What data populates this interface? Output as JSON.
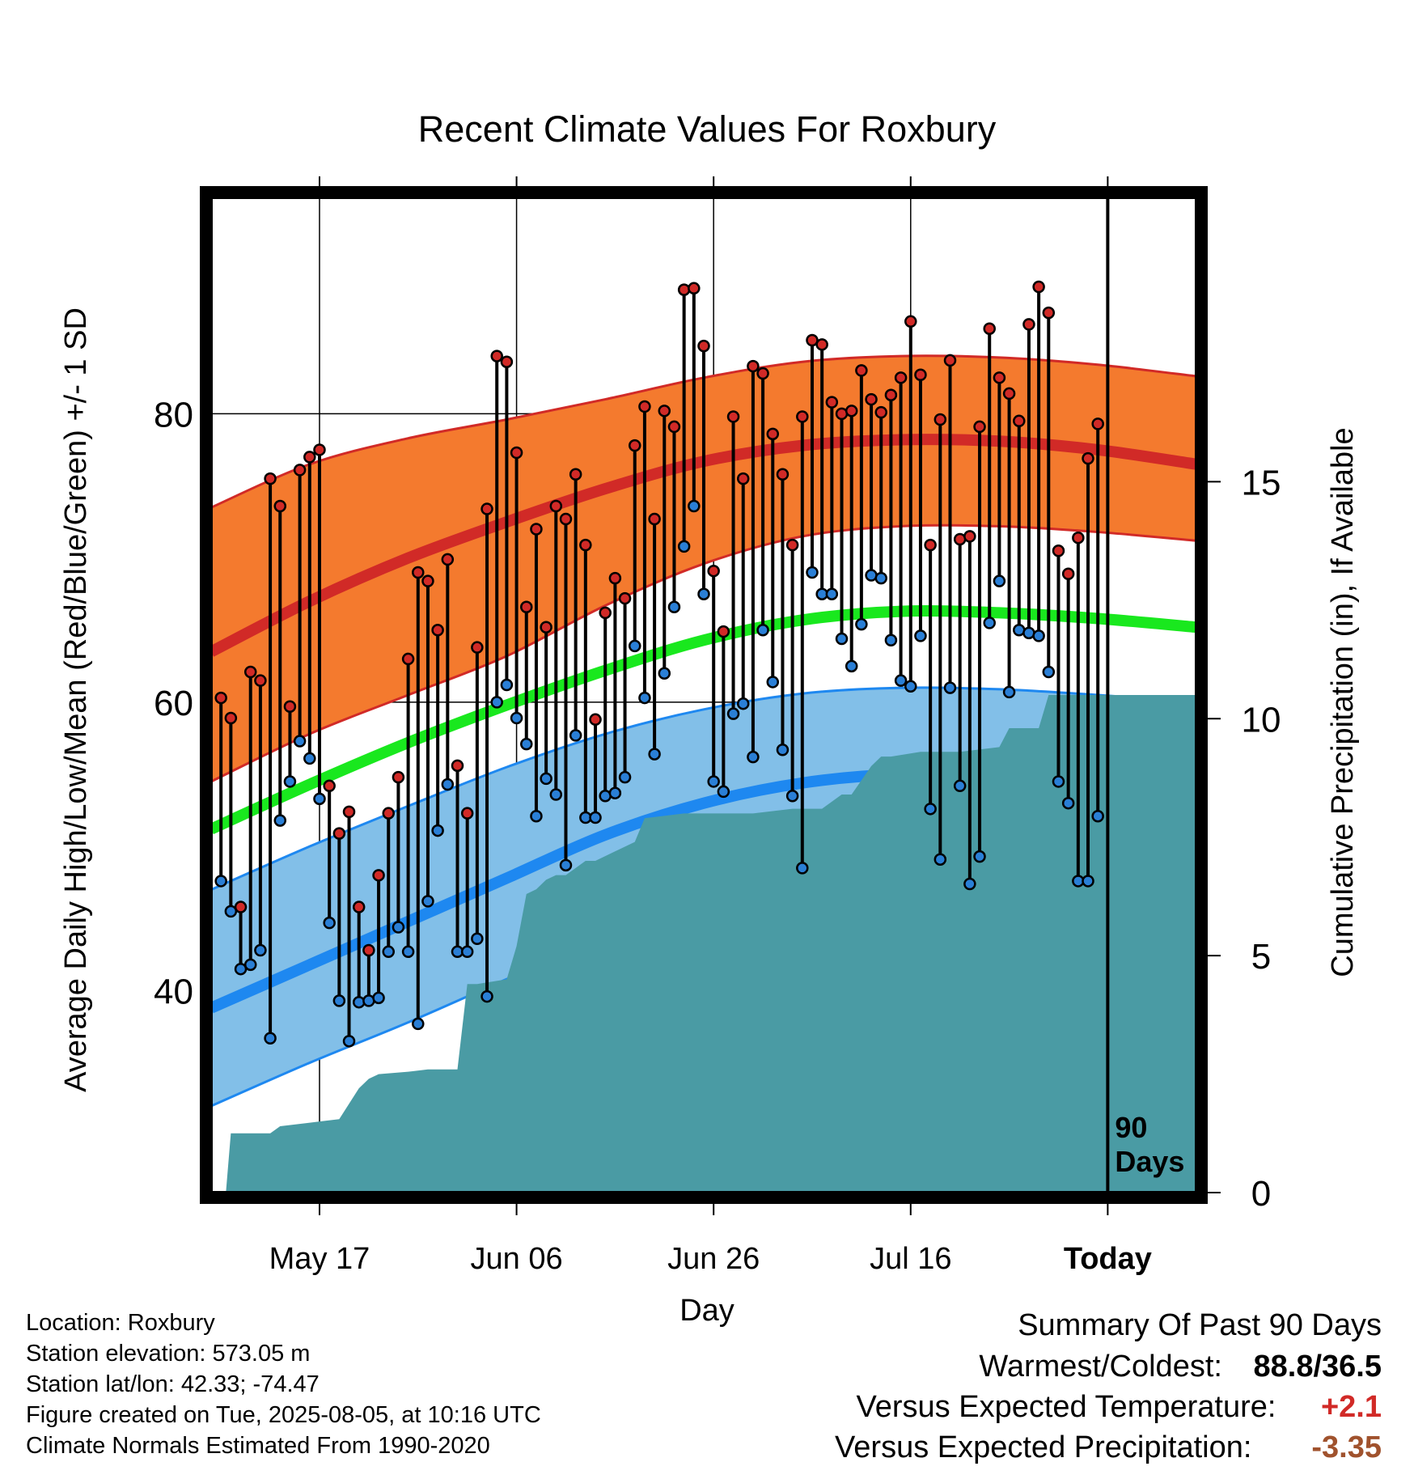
{
  "chart_data": {
    "type": "line",
    "title": "Recent Climate Values For Roxbury",
    "xlabel": "Day",
    "ylabel": "Average Daily High/Low/Mean (Red/Blue/Green) +/- 1 SD",
    "y2label": "Cumulative Precipitation (in), If Available",
    "ylim": [
      26,
      95
    ],
    "y_ticks": [
      40,
      60,
      80
    ],
    "y2lim": [
      0,
      21
    ],
    "y2_ticks": [
      0,
      5,
      10,
      15
    ],
    "x_day_range": [
      0,
      100
    ],
    "x_ticks": [
      {
        "day": 11,
        "label": "May 17"
      },
      {
        "day": 31,
        "label": "Jun 06"
      },
      {
        "day": 51,
        "label": "Jun 26"
      },
      {
        "day": 71,
        "label": "Jul 16"
      },
      {
        "day": 91,
        "label": "Today"
      }
    ],
    "today_day": 91,
    "today_label_line1": "90",
    "today_label_line2": "Days",
    "grid": true,
    "colors": {
      "high_band": "#f47a2e",
      "high_line": "#d12a27",
      "low_band": "#82bfe8",
      "low_line": "#1e88f0",
      "mean_line": "#19e81e",
      "precip": "#4a9ba4",
      "high_marker": "#d12a27",
      "low_marker": "#2a7fd6"
    },
    "normals": {
      "days": [
        0,
        10,
        20,
        30,
        40,
        50,
        60,
        70,
        80,
        90,
        100
      ],
      "high_mean": [
        63.5,
        67.0,
        70.0,
        72.5,
        74.8,
        76.7,
        77.8,
        78.2,
        78.1,
        77.5,
        76.5
      ],
      "high_sd_upper": [
        73.5,
        76.5,
        78.3,
        79.6,
        81.0,
        82.5,
        83.6,
        84.0,
        83.9,
        83.4,
        82.6
      ],
      "high_sd_lower": [
        54.5,
        57.8,
        60.5,
        63.2,
        66.7,
        69.6,
        71.5,
        72.2,
        72.2,
        71.8,
        71.2
      ],
      "mean": [
        51.2,
        54.3,
        57.2,
        59.8,
        62.2,
        64.3,
        65.7,
        66.3,
        66.2,
        65.8,
        65.2
      ],
      "low_mean": [
        38.8,
        41.8,
        44.8,
        47.8,
        50.8,
        53.0,
        54.4,
        55.0,
        54.8,
        54.4,
        53.8
      ],
      "low_sd_upper": [
        47.0,
        50.0,
        52.8,
        55.5,
        57.8,
        59.5,
        60.6,
        61.0,
        60.9,
        60.5,
        60.0
      ],
      "low_sd_lower": [
        32.0,
        35.0,
        37.8,
        40.8,
        43.7,
        46.5,
        48.5,
        49.4,
        49.5,
        49.2,
        48.5
      ]
    },
    "daily": {
      "day_start": 1,
      "high": [
        60.3,
        58.9,
        45.8,
        62.1,
        61.5,
        75.5,
        73.6,
        59.7,
        76.1,
        77.0,
        77.5,
        54.2,
        50.9,
        52.4,
        45.8,
        42.8,
        48.0,
        52.3,
        54.8,
        63.0,
        69.0,
        68.4,
        65.0,
        69.9,
        55.6,
        52.3,
        63.8,
        73.4,
        84.0,
        83.6,
        77.3,
        66.6,
        72.0,
        65.2,
        73.6,
        72.7,
        75.8,
        70.9,
        58.8,
        66.2,
        68.6,
        67.2,
        77.8,
        80.5,
        72.7,
        80.2,
        79.1,
        88.6,
        88.7,
        84.7,
        69.1,
        64.9,
        79.8,
        75.5,
        83.3,
        82.8,
        78.6,
        75.8,
        70.9,
        79.8,
        85.1,
        84.8,
        80.8,
        80.0,
        80.2,
        83.0,
        81.0,
        80.1,
        81.3,
        82.5,
        86.4,
        82.7,
        70.9,
        79.6,
        83.7,
        71.3,
        71.5,
        79.1,
        85.9,
        82.5,
        81.4,
        79.5,
        86.2,
        88.8,
        87.0,
        70.5,
        68.9,
        71.4,
        76.9,
        79.3
      ],
      "low": [
        47.6,
        45.5,
        41.5,
        41.8,
        42.8,
        36.7,
        51.8,
        54.5,
        57.3,
        56.1,
        53.3,
        44.7,
        39.3,
        36.5,
        39.2,
        39.3,
        39.5,
        42.7,
        44.4,
        42.7,
        37.7,
        46.2,
        51.1,
        54.3,
        42.7,
        42.7,
        43.6,
        39.6,
        60.0,
        61.2,
        58.9,
        57.1,
        52.1,
        54.7,
        53.6,
        48.7,
        57.7,
        52.0,
        52.0,
        53.5,
        53.7,
        54.8,
        63.9,
        60.3,
        56.4,
        62.0,
        66.6,
        70.8,
        73.6,
        67.5,
        54.5,
        53.8,
        59.2,
        59.9,
        56.2,
        65.0,
        61.4,
        56.7,
        53.5,
        48.5,
        69.0,
        67.5,
        67.5,
        64.4,
        62.5,
        65.4,
        68.8,
        68.6,
        64.3,
        61.5,
        61.1,
        64.6,
        52.6,
        49.1,
        61.0,
        54.2,
        47.4,
        49.3,
        65.5,
        68.4,
        60.7,
        65.0,
        64.8,
        64.6,
        62.1,
        54.5,
        53.0,
        47.6,
        47.6,
        52.1
      ]
    },
    "precip_cumulative": {
      "days": [
        0,
        1.5,
        2,
        6,
        7,
        11,
        13,
        15,
        16,
        17,
        20,
        22,
        25,
        26,
        27,
        30,
        31,
        32,
        33,
        34,
        35,
        36,
        38,
        39,
        41,
        43,
        44,
        46,
        48,
        55,
        59,
        62,
        64,
        65,
        67,
        68,
        69,
        72,
        76,
        80,
        81,
        84,
        85,
        100
      ],
      "values": [
        0,
        0,
        1.25,
        1.25,
        1.4,
        1.5,
        1.55,
        2.2,
        2.4,
        2.5,
        2.55,
        2.6,
        2.6,
        4.4,
        4.4,
        4.5,
        5.2,
        6.3,
        6.4,
        6.6,
        6.7,
        6.7,
        7.0,
        7.0,
        7.2,
        7.4,
        7.9,
        7.95,
        8.0,
        8.0,
        8.1,
        8.1,
        8.4,
        8.4,
        9.0,
        9.2,
        9.2,
        9.3,
        9.3,
        9.4,
        9.8,
        9.8,
        10.5,
        10.5
      ]
    }
  },
  "info": {
    "location": "Location: Roxbury",
    "elevation": "Station elevation: 573.05 m",
    "latlon": "Station lat/lon: 42.33; -74.47",
    "created": "Figure created on Tue, 2025-08-05, at 10:16 UTC",
    "normals": "Climate Normals Estimated From 1990-2020"
  },
  "summary": {
    "title": "Summary Of Past 90 Days",
    "warmest_label": "Warmest/Coldest:",
    "warmest_value": "88.8/36.5",
    "temp_label": "Versus Expected Temperature:",
    "temp_value": "+2.1",
    "temp_color": "#d12a27",
    "precip_label": "Versus Expected Precipitation:",
    "precip_value": "-3.35",
    "precip_color": "#a0522d"
  }
}
